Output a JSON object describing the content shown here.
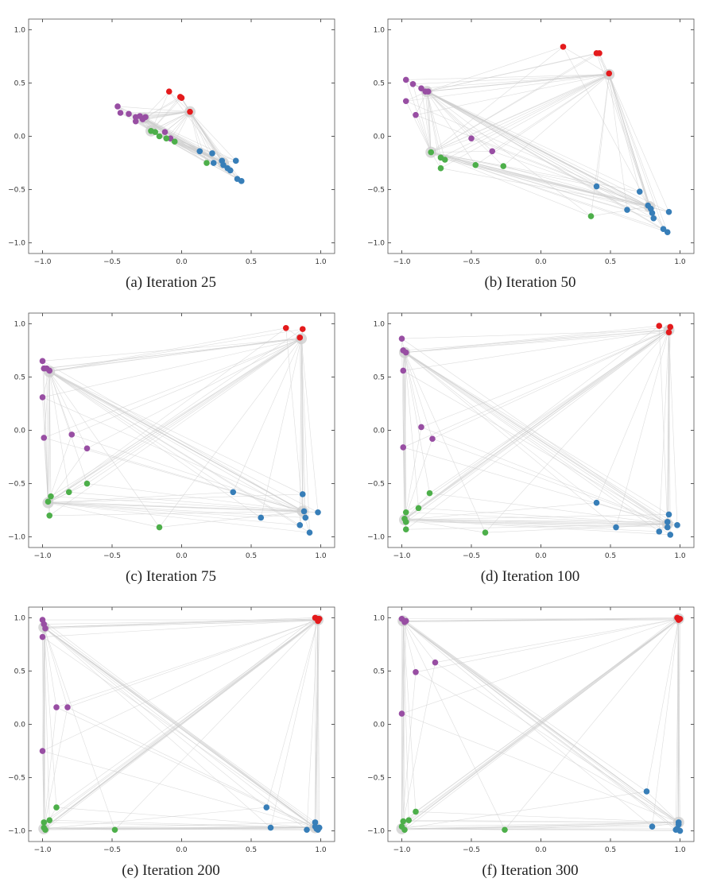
{
  "colors": {
    "purple": "#984ea3",
    "red": "#e41a1c",
    "green": "#4daf4a",
    "blue": "#377eb8",
    "edge": "#cfcfcf",
    "halo": "#cccccc"
  },
  "chart_data": [
    {
      "type": "scatter",
      "caption": "(a) Iteration 25",
      "xlim": [
        -1.1,
        1.1
      ],
      "ylim": [
        -1.1,
        1.1
      ],
      "xticks": [
        -1.0,
        -0.5,
        0.0,
        0.5,
        1.0
      ],
      "yticks": [
        -1.0,
        -0.5,
        0.0,
        0.5,
        1.0
      ],
      "xtick_labels": [
        "−1.0",
        "−0.5",
        "0.0",
        "0.5",
        "1.0"
      ],
      "ytick_labels": [
        "−1.0",
        "−0.5",
        "0.0",
        "0.5",
        "1.0"
      ],
      "hubs": [
        [
          -0.27,
          0.17
        ],
        [
          0.06,
          0.23
        ],
        [
          -0.22,
          0.05
        ],
        [
          0.3,
          -0.25
        ]
      ],
      "series": [
        {
          "name": "purple",
          "points": [
            [
              -0.46,
              0.28
            ],
            [
              -0.44,
              0.22
            ],
            [
              -0.38,
              0.21
            ],
            [
              -0.33,
              0.18
            ],
            [
              -0.3,
              0.19
            ],
            [
              -0.28,
              0.16
            ],
            [
              -0.33,
              0.14
            ],
            [
              -0.26,
              0.18
            ],
            [
              -0.12,
              0.04
            ],
            [
              -0.08,
              -0.02
            ]
          ]
        },
        {
          "name": "red",
          "points": [
            [
              -0.09,
              0.42
            ],
            [
              -0.01,
              0.37
            ],
            [
              0.0,
              0.36
            ],
            [
              0.06,
              0.23
            ]
          ]
        },
        {
          "name": "green",
          "points": [
            [
              -0.22,
              0.05
            ],
            [
              -0.19,
              0.04
            ],
            [
              -0.16,
              0.0
            ],
            [
              -0.11,
              -0.02
            ],
            [
              -0.05,
              -0.05
            ],
            [
              0.18,
              -0.25
            ]
          ]
        },
        {
          "name": "blue",
          "points": [
            [
              0.13,
              -0.14
            ],
            [
              0.22,
              -0.16
            ],
            [
              0.23,
              -0.25
            ],
            [
              0.29,
              -0.23
            ],
            [
              0.3,
              -0.27
            ],
            [
              0.33,
              -0.3
            ],
            [
              0.35,
              -0.32
            ],
            [
              0.39,
              -0.23
            ],
            [
              0.4,
              -0.4
            ],
            [
              0.43,
              -0.42
            ]
          ]
        }
      ]
    },
    {
      "type": "scatter",
      "caption": "(b) Iteration 50",
      "xlim": [
        -1.1,
        1.1
      ],
      "ylim": [
        -1.1,
        1.1
      ],
      "xticks": [
        -1.0,
        -0.5,
        0.0,
        0.5,
        1.0
      ],
      "yticks": [
        -1.0,
        -0.5,
        0.0,
        0.5,
        1.0
      ],
      "xtick_labels": [
        "−1.0",
        "−0.5",
        "0.0",
        "0.5",
        "1.0"
      ],
      "ytick_labels": [
        "−1.0",
        "−0.5",
        "0.0",
        "0.5",
        "1.0"
      ],
      "hubs": [
        [
          -0.82,
          0.42
        ],
        [
          0.49,
          0.58
        ],
        [
          -0.79,
          -0.15
        ],
        [
          0.78,
          -0.66
        ]
      ],
      "series": [
        {
          "name": "purple",
          "points": [
            [
              -0.97,
              0.53
            ],
            [
              -0.92,
              0.49
            ],
            [
              -0.86,
              0.45
            ],
            [
              -0.83,
              0.42
            ],
            [
              -0.81,
              0.42
            ],
            [
              -0.97,
              0.33
            ],
            [
              -0.9,
              0.2
            ],
            [
              -0.5,
              -0.02
            ],
            [
              -0.35,
              -0.14
            ]
          ]
        },
        {
          "name": "red",
          "points": [
            [
              0.16,
              0.84
            ],
            [
              0.4,
              0.78
            ],
            [
              0.42,
              0.78
            ],
            [
              0.49,
              0.59
            ]
          ]
        },
        {
          "name": "green",
          "points": [
            [
              -0.79,
              -0.15
            ],
            [
              -0.72,
              -0.2
            ],
            [
              -0.69,
              -0.22
            ],
            [
              -0.72,
              -0.3
            ],
            [
              -0.47,
              -0.27
            ],
            [
              -0.27,
              -0.28
            ],
            [
              0.36,
              -0.75
            ]
          ]
        },
        {
          "name": "blue",
          "points": [
            [
              0.4,
              -0.47
            ],
            [
              0.62,
              -0.69
            ],
            [
              0.71,
              -0.52
            ],
            [
              0.77,
              -0.65
            ],
            [
              0.79,
              -0.68
            ],
            [
              0.8,
              -0.72
            ],
            [
              0.81,
              -0.77
            ],
            [
              0.88,
              -0.87
            ],
            [
              0.91,
              -0.9
            ],
            [
              0.92,
              -0.71
            ]
          ]
        }
      ]
    },
    {
      "type": "scatter",
      "caption": "(c) Iteration 75",
      "xlim": [
        -1.1,
        1.1
      ],
      "ylim": [
        -1.1,
        1.1
      ],
      "xticks": [
        -1.0,
        -0.5,
        0.0,
        0.5,
        1.0
      ],
      "yticks": [
        -1.0,
        -0.5,
        0.0,
        0.5,
        1.0
      ],
      "xtick_labels": [
        "−1.0",
        "−0.5",
        "0.0",
        "0.5",
        "1.0"
      ],
      "ytick_labels": [
        "−1.0",
        "−0.5",
        "0.0",
        "0.5",
        "1.0"
      ],
      "hubs": [
        [
          -0.95,
          0.55
        ],
        [
          0.86,
          0.86
        ],
        [
          -0.96,
          -0.68
        ],
        [
          0.87,
          -0.76
        ]
      ],
      "series": [
        {
          "name": "purple",
          "points": [
            [
              -1.0,
              0.65
            ],
            [
              -0.99,
              0.58
            ],
            [
              -0.97,
              0.58
            ],
            [
              -0.95,
              0.56
            ],
            [
              -1.0,
              0.31
            ],
            [
              -0.99,
              -0.07
            ],
            [
              -0.79,
              -0.04
            ],
            [
              -0.68,
              -0.17
            ]
          ]
        },
        {
          "name": "red",
          "points": [
            [
              0.75,
              0.96
            ],
            [
              0.87,
              0.95
            ],
            [
              0.85,
              0.87
            ]
          ]
        },
        {
          "name": "green",
          "points": [
            [
              -0.96,
              -0.67
            ],
            [
              -0.94,
              -0.62
            ],
            [
              -0.95,
              -0.8
            ],
            [
              -0.81,
              -0.58
            ],
            [
              -0.68,
              -0.5
            ],
            [
              -0.16,
              -0.91
            ]
          ]
        },
        {
          "name": "blue",
          "points": [
            [
              0.37,
              -0.58
            ],
            [
              0.57,
              -0.82
            ],
            [
              0.85,
              -0.89
            ],
            [
              0.87,
              -0.6
            ],
            [
              0.88,
              -0.76
            ],
            [
              0.89,
              -0.82
            ],
            [
              0.92,
              -0.96
            ],
            [
              0.98,
              -0.77
            ]
          ]
        }
      ]
    },
    {
      "type": "scatter",
      "caption": "(d) Iteration 100",
      "xlim": [
        -1.1,
        1.1
      ],
      "ylim": [
        -1.1,
        1.1
      ],
      "xticks": [
        -1.0,
        -0.5,
        0.0,
        0.5,
        1.0
      ],
      "yticks": [
        -1.0,
        -0.5,
        0.0,
        0.5,
        1.0
      ],
      "xtick_labels": [
        "−1.0",
        "−0.5",
        "0.0",
        "0.5",
        "1.0"
      ],
      "ytick_labels": [
        "−1.0",
        "−0.5",
        "0.0",
        "0.5",
        "1.0"
      ],
      "hubs": [
        [
          -0.98,
          0.73
        ],
        [
          0.92,
          0.94
        ],
        [
          -0.98,
          -0.84
        ],
        [
          0.91,
          -0.88
        ]
      ],
      "series": [
        {
          "name": "purple",
          "points": [
            [
              -1.0,
              0.86
            ],
            [
              -0.99,
              0.75
            ],
            [
              -0.97,
              0.73
            ],
            [
              -0.99,
              0.56
            ],
            [
              -0.99,
              -0.16
            ],
            [
              -0.86,
              0.03
            ],
            [
              -0.78,
              -0.08
            ]
          ]
        },
        {
          "name": "red",
          "points": [
            [
              0.85,
              0.98
            ],
            [
              0.93,
              0.97
            ],
            [
              0.92,
              0.92
            ]
          ]
        },
        {
          "name": "green",
          "points": [
            [
              -0.97,
              -0.77
            ],
            [
              -0.98,
              -0.83
            ],
            [
              -0.97,
              -0.86
            ],
            [
              -0.97,
              -0.93
            ],
            [
              -0.88,
              -0.73
            ],
            [
              -0.8,
              -0.59
            ],
            [
              -0.4,
              -0.96
            ]
          ]
        },
        {
          "name": "blue",
          "points": [
            [
              0.4,
              -0.68
            ],
            [
              0.54,
              -0.91
            ],
            [
              0.85,
              -0.95
            ],
            [
              0.91,
              -0.86
            ],
            [
              0.91,
              -0.91
            ],
            [
              0.92,
              -0.79
            ],
            [
              0.93,
              -0.98
            ],
            [
              0.98,
              -0.89
            ]
          ]
        }
      ]
    },
    {
      "type": "scatter",
      "caption": "(e) Iteration 200",
      "xlim": [
        -1.1,
        1.1
      ],
      "ylim": [
        -1.1,
        1.1
      ],
      "xticks": [
        -1.0,
        -0.5,
        0.0,
        0.5,
        1.0
      ],
      "yticks": [
        -1.0,
        -0.5,
        0.0,
        0.5,
        1.0
      ],
      "xtick_labels": [
        "−1.0",
        "−0.5",
        "0.0",
        "0.5",
        "1.0"
      ],
      "ytick_labels": [
        "−1.0",
        "−0.5",
        "0.0",
        "0.5",
        "1.0"
      ],
      "hubs": [
        [
          -0.99,
          0.91
        ],
        [
          0.98,
          0.98
        ],
        [
          -0.99,
          -0.98
        ],
        [
          0.96,
          -0.97
        ]
      ],
      "series": [
        {
          "name": "purple",
          "points": [
            [
              -1.0,
              0.98
            ],
            [
              -0.99,
              0.94
            ],
            [
              -0.98,
              0.9
            ],
            [
              -1.0,
              0.82
            ],
            [
              -0.9,
              0.16
            ],
            [
              -0.82,
              0.16
            ],
            [
              -1.0,
              -0.25
            ]
          ]
        },
        {
          "name": "red",
          "points": [
            [
              0.96,
              1.0
            ],
            [
              0.98,
              0.99
            ],
            [
              0.99,
              0.99
            ],
            [
              0.98,
              0.97
            ]
          ]
        },
        {
          "name": "green",
          "points": [
            [
              -0.99,
              -0.92
            ],
            [
              -0.99,
              -0.97
            ],
            [
              -0.98,
              -0.99
            ],
            [
              -0.95,
              -0.9
            ],
            [
              -0.9,
              -0.78
            ],
            [
              -0.48,
              -0.99
            ]
          ]
        },
        {
          "name": "blue",
          "points": [
            [
              0.61,
              -0.78
            ],
            [
              0.64,
              -0.97
            ],
            [
              0.9,
              -0.99
            ],
            [
              0.96,
              -0.92
            ],
            [
              0.96,
              -0.96
            ],
            [
              0.97,
              -0.98
            ],
            [
              0.98,
              -0.99
            ],
            [
              0.99,
              -0.97
            ]
          ]
        }
      ]
    },
    {
      "type": "scatter",
      "caption": "(f) Iteration 300",
      "xlim": [
        -1.1,
        1.1
      ],
      "ylim": [
        -1.1,
        1.1
      ],
      "xticks": [
        -1.0,
        -0.5,
        0.0,
        0.5,
        1.0
      ],
      "yticks": [
        -1.0,
        -0.5,
        0.0,
        0.5,
        1.0
      ],
      "xtick_labels": [
        "−1.0",
        "−0.5",
        "0.0",
        "0.5",
        "1.0"
      ],
      "ytick_labels": [
        "−1.0",
        "−0.5",
        "0.0",
        "0.5",
        "1.0"
      ],
      "hubs": [
        [
          -0.99,
          0.97
        ],
        [
          0.99,
          0.99
        ],
        [
          -1.0,
          -0.98
        ],
        [
          0.99,
          -0.92
        ]
      ],
      "series": [
        {
          "name": "purple",
          "points": [
            [
              -1.0,
              0.99
            ],
            [
              -0.98,
              0.96
            ],
            [
              -0.97,
              0.97
            ],
            [
              -0.76,
              0.58
            ],
            [
              -0.9,
              0.49
            ],
            [
              -1.0,
              0.1
            ]
          ]
        },
        {
          "name": "red",
          "points": [
            [
              0.98,
              1.0
            ],
            [
              0.99,
              0.99
            ],
            [
              1.0,
              0.99
            ],
            [
              0.99,
              0.98
            ]
          ]
        },
        {
          "name": "green",
          "points": [
            [
              -0.99,
              -0.91
            ],
            [
              -1.0,
              -0.96
            ],
            [
              -0.98,
              -0.99
            ],
            [
              -0.95,
              -0.9
            ],
            [
              -0.9,
              -0.82
            ],
            [
              -0.26,
              -0.99
            ]
          ]
        },
        {
          "name": "blue",
          "points": [
            [
              0.76,
              -0.63
            ],
            [
              0.8,
              -0.96
            ],
            [
              0.97,
              -0.99
            ],
            [
              0.99,
              -0.92
            ],
            [
              0.99,
              -0.94
            ],
            [
              1.0,
              -1.0
            ],
            [
              0.98,
              -0.98
            ]
          ]
        }
      ]
    }
  ]
}
